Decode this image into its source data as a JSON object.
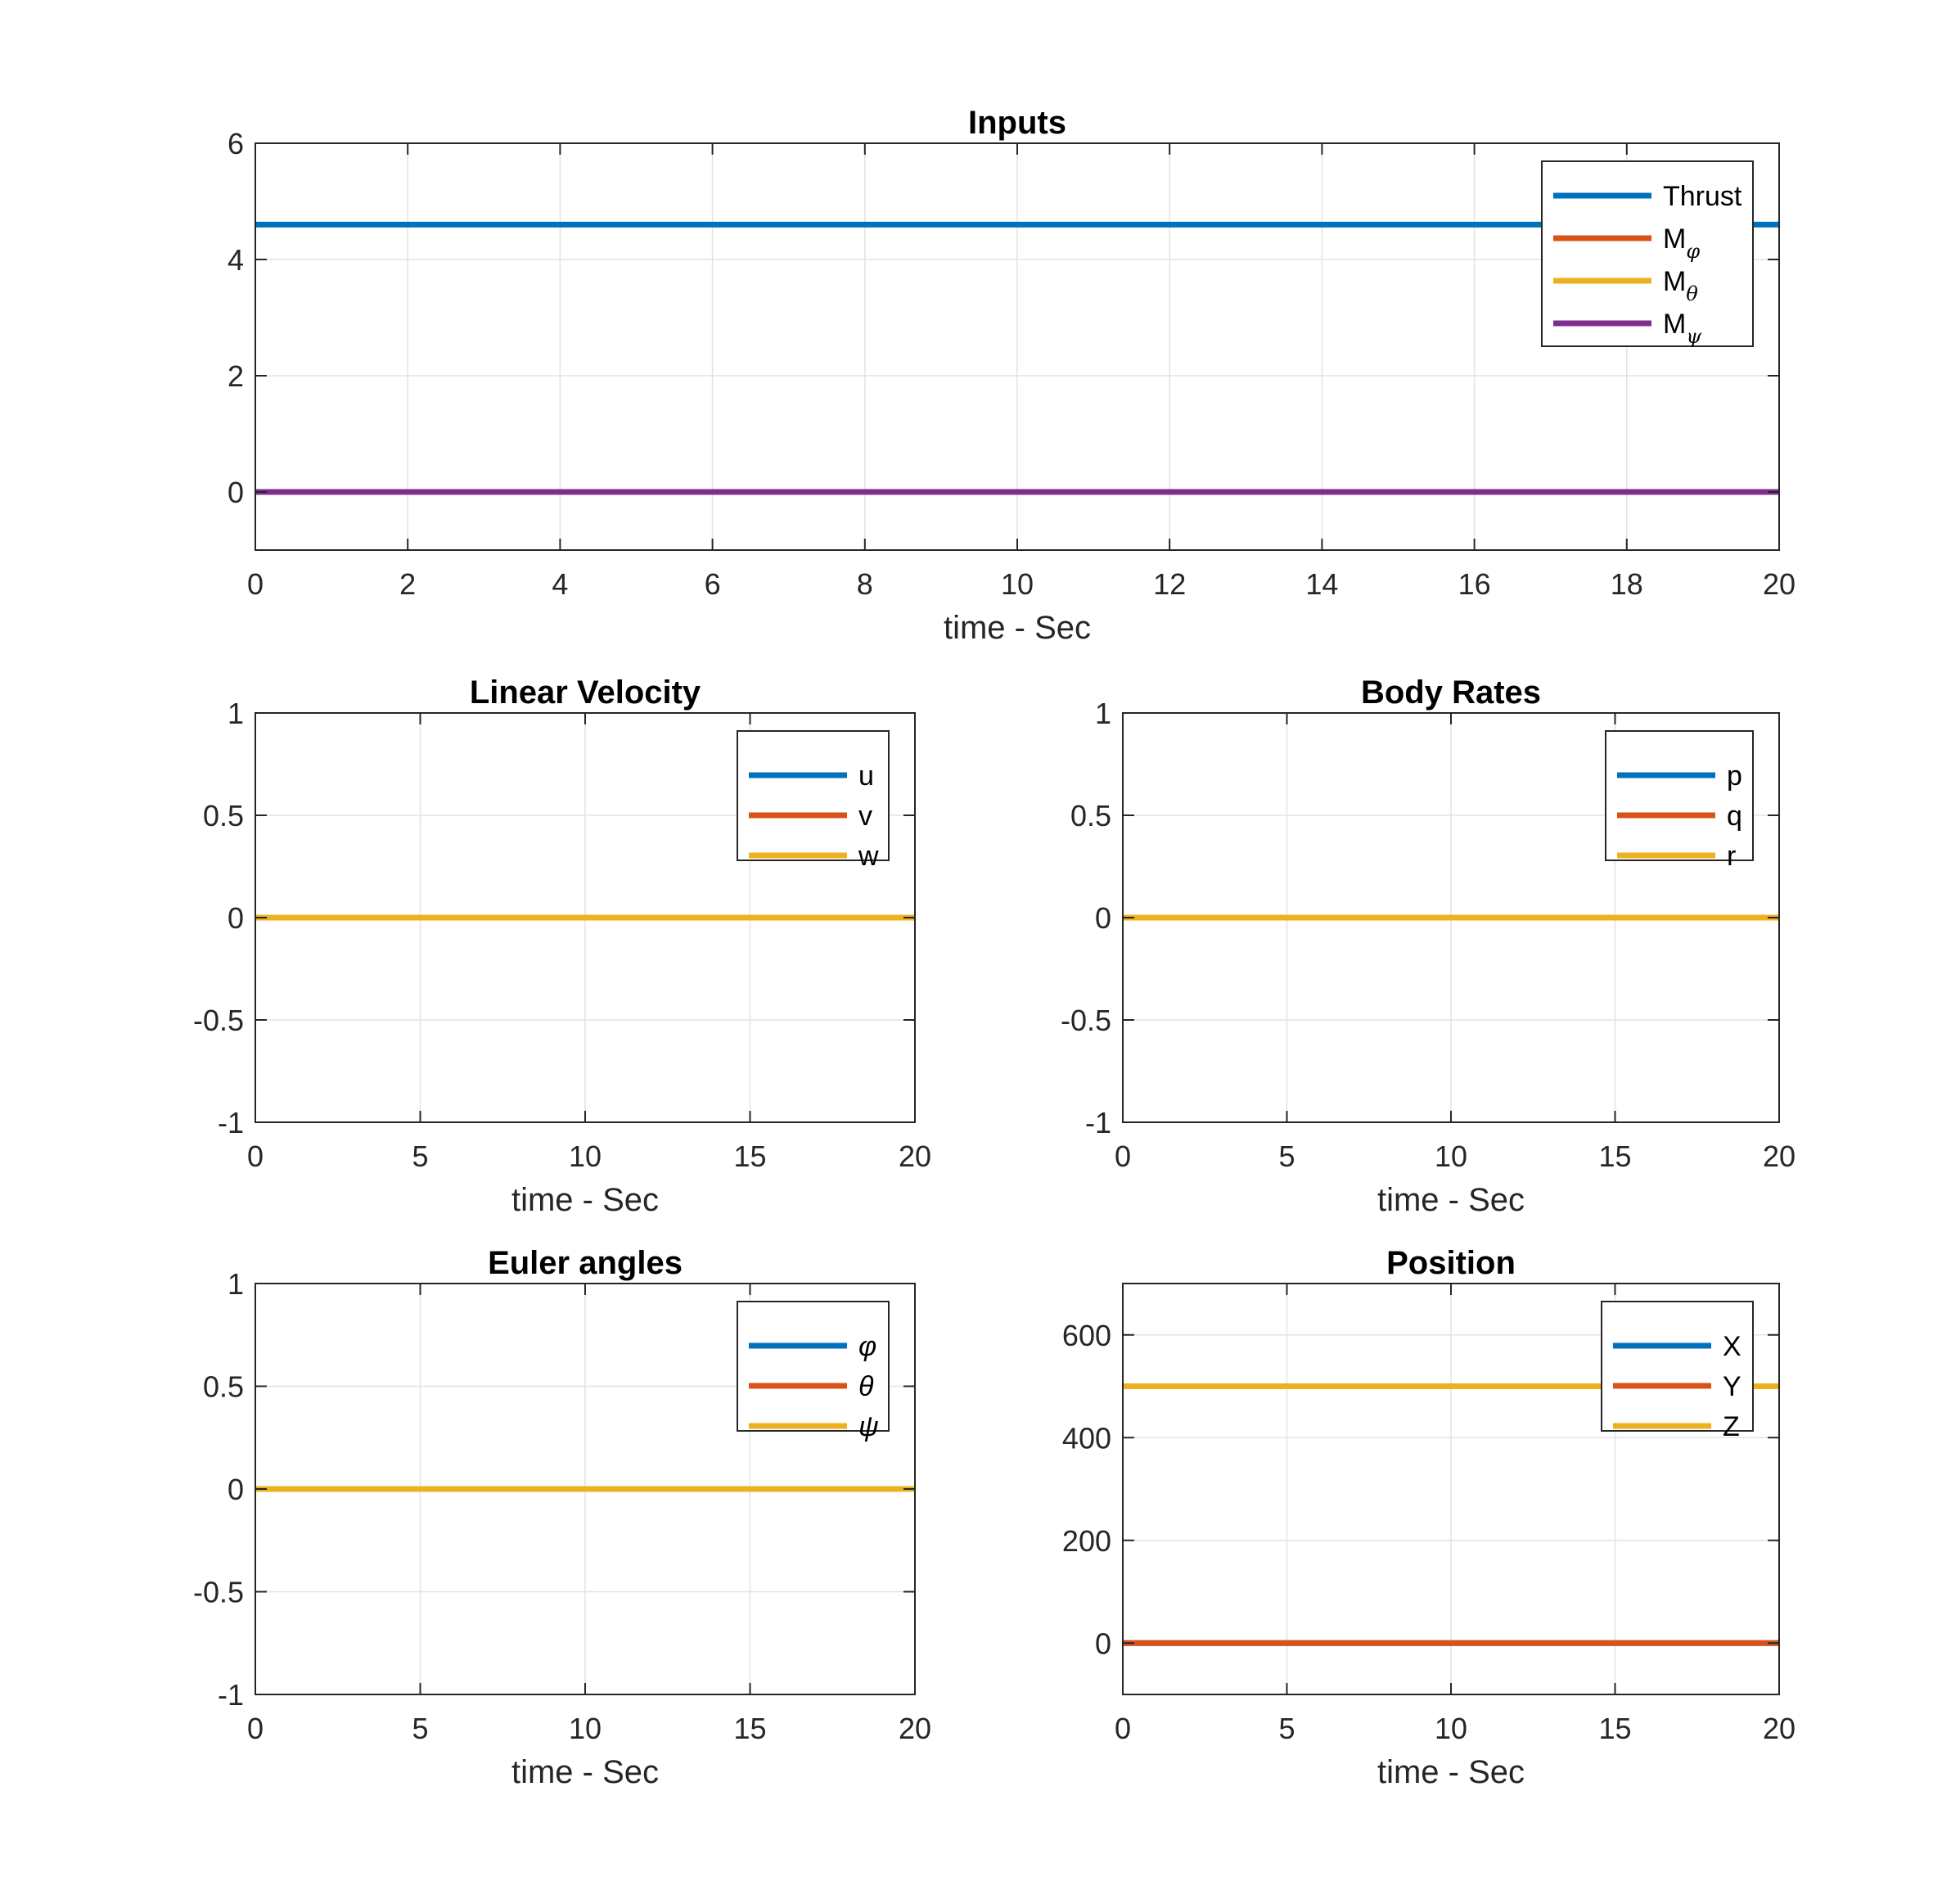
{
  "figure": {
    "background": "#ffffff"
  },
  "colors": {
    "blue": "#0072BD",
    "orange": "#D95319",
    "yellow": "#EDB120",
    "purple": "#7E2F8E",
    "axis": "#262626",
    "grid": "#e3e3e3"
  },
  "chart_data": [
    {
      "id": "inputs",
      "type": "line",
      "title": "Inputs",
      "xlabel": "time - Sec",
      "ylabel": "",
      "xlim": [
        0,
        20
      ],
      "ylim": [
        -1,
        6
      ],
      "xticks": [
        0,
        2,
        4,
        6,
        8,
        10,
        12,
        14,
        16,
        18,
        20
      ],
      "xtick_labels": [
        "0",
        "2",
        "4",
        "6",
        "8",
        "10",
        "12",
        "14",
        "16",
        "18",
        "20"
      ],
      "yticks": [
        0,
        2,
        4,
        6
      ],
      "ytick_labels": [
        "0",
        "2",
        "4",
        "6"
      ],
      "grid": true,
      "legend_position": "top-right",
      "series": [
        {
          "name": "Thrust",
          "sub": "",
          "color": "blue",
          "x": [
            0,
            20
          ],
          "y": [
            4.6,
            4.6
          ]
        },
        {
          "name": "M",
          "sub": "φ",
          "color": "orange",
          "x": [
            0,
            20
          ],
          "y": [
            0,
            0
          ]
        },
        {
          "name": "M",
          "sub": "θ",
          "color": "yellow",
          "x": [
            0,
            20
          ],
          "y": [
            0,
            0
          ]
        },
        {
          "name": "M",
          "sub": "ψ",
          "color": "purple",
          "x": [
            0,
            20
          ],
          "y": [
            0,
            0
          ]
        }
      ]
    },
    {
      "id": "linear-velocity",
      "type": "line",
      "title": "Linear Velocity",
      "xlabel": "time - Sec",
      "ylabel": "",
      "xlim": [
        0,
        20
      ],
      "ylim": [
        -1,
        1
      ],
      "xticks": [
        0,
        5,
        10,
        15,
        20
      ],
      "xtick_labels": [
        "0",
        "5",
        "10",
        "15",
        "20"
      ],
      "yticks": [
        -1,
        -0.5,
        0,
        0.5,
        1
      ],
      "ytick_labels": [
        "-1",
        "-0.5",
        "0",
        "0.5",
        "1"
      ],
      "grid": true,
      "legend_position": "top-right",
      "series": [
        {
          "name": "u",
          "sub": "",
          "color": "blue",
          "x": [
            0,
            20
          ],
          "y": [
            0,
            0
          ]
        },
        {
          "name": "v",
          "sub": "",
          "color": "orange",
          "x": [
            0,
            20
          ],
          "y": [
            0,
            0
          ]
        },
        {
          "name": "w",
          "sub": "",
          "color": "yellow",
          "x": [
            0,
            20
          ],
          "y": [
            0,
            0
          ]
        }
      ]
    },
    {
      "id": "body-rates",
      "type": "line",
      "title": "Body Rates",
      "xlabel": "time - Sec",
      "ylabel": "",
      "xlim": [
        0,
        20
      ],
      "ylim": [
        -1,
        1
      ],
      "xticks": [
        0,
        5,
        10,
        15,
        20
      ],
      "xtick_labels": [
        "0",
        "5",
        "10",
        "15",
        "20"
      ],
      "yticks": [
        -1,
        -0.5,
        0,
        0.5,
        1
      ],
      "ytick_labels": [
        "-1",
        "-0.5",
        "0",
        "0.5",
        "1"
      ],
      "grid": true,
      "legend_position": "top-right",
      "series": [
        {
          "name": "p",
          "sub": "",
          "color": "blue",
          "x": [
            0,
            20
          ],
          "y": [
            0,
            0
          ]
        },
        {
          "name": "q",
          "sub": "",
          "color": "orange",
          "x": [
            0,
            20
          ],
          "y": [
            0,
            0
          ]
        },
        {
          "name": "r",
          "sub": "",
          "color": "yellow",
          "x": [
            0,
            20
          ],
          "y": [
            0,
            0
          ]
        }
      ]
    },
    {
      "id": "euler-angles",
      "type": "line",
      "title": "Euler angles",
      "xlabel": "time - Sec",
      "ylabel": "",
      "xlim": [
        0,
        20
      ],
      "ylim": [
        -1,
        1
      ],
      "xticks": [
        0,
        5,
        10,
        15,
        20
      ],
      "xtick_labels": [
        "0",
        "5",
        "10",
        "15",
        "20"
      ],
      "yticks": [
        -1,
        -0.5,
        0,
        0.5,
        1
      ],
      "ytick_labels": [
        "-1",
        "-0.5",
        "0",
        "0.5",
        "1"
      ],
      "grid": true,
      "legend_position": "top-right",
      "series": [
        {
          "name": "φ",
          "sub": "",
          "italic": true,
          "color": "blue",
          "x": [
            0,
            20
          ],
          "y": [
            0,
            0
          ]
        },
        {
          "name": "θ",
          "sub": "",
          "italic": true,
          "color": "orange",
          "x": [
            0,
            20
          ],
          "y": [
            0,
            0
          ]
        },
        {
          "name": "ψ",
          "sub": "",
          "italic": true,
          "color": "yellow",
          "x": [
            0,
            20
          ],
          "y": [
            0,
            0
          ]
        }
      ]
    },
    {
      "id": "position",
      "type": "line",
      "title": "Position",
      "xlabel": "time - Sec",
      "ylabel": "",
      "xlim": [
        0,
        20
      ],
      "ylim": [
        -100,
        700
      ],
      "xticks": [
        0,
        5,
        10,
        15,
        20
      ],
      "xtick_labels": [
        "0",
        "5",
        "10",
        "15",
        "20"
      ],
      "yticks": [
        0,
        200,
        400,
        600
      ],
      "ytick_labels": [
        "0",
        "200",
        "400",
        "600"
      ],
      "grid": true,
      "legend_position": "top-right",
      "series": [
        {
          "name": "X",
          "sub": "",
          "color": "blue",
          "x": [
            0,
            20
          ],
          "y": [
            0,
            0
          ]
        },
        {
          "name": "Y",
          "sub": "",
          "color": "orange",
          "x": [
            0,
            20
          ],
          "y": [
            0,
            0
          ]
        },
        {
          "name": "Z",
          "sub": "",
          "color": "yellow",
          "x": [
            0,
            20
          ],
          "y": [
            500,
            500
          ]
        }
      ]
    }
  ]
}
